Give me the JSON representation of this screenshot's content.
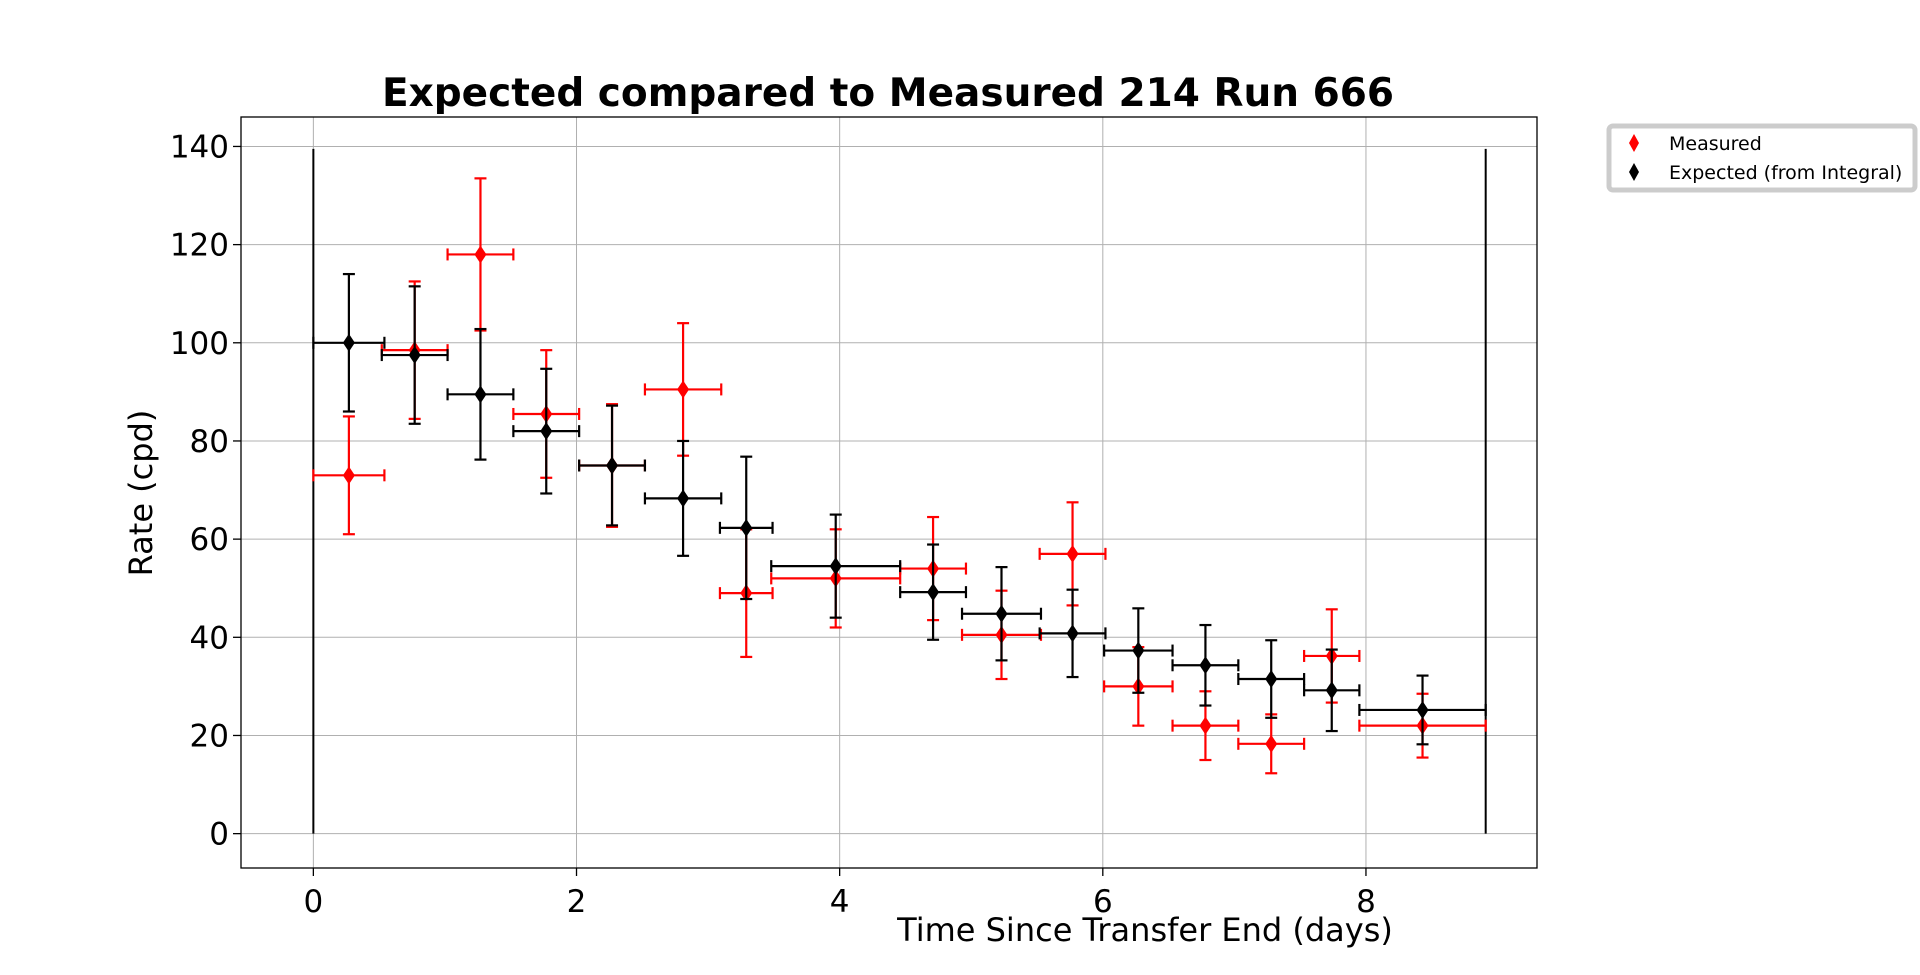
{
  "chart_data": {
    "type": "scatter",
    "title": "Expected compared to Measured 214 Run 666",
    "xlabel": "Time Since Transfer End (days)",
    "ylabel": "Rate (cpd)",
    "xlim": [
      -0.55,
      9.3
    ],
    "ylim": [
      -7,
      146
    ],
    "x_ticks": [
      0,
      2,
      4,
      6,
      8
    ],
    "y_ticks": [
      0,
      20,
      40,
      60,
      80,
      100,
      120,
      140
    ],
    "grid": true,
    "legend_position": "outside-top-right",
    "vertical_lines": [
      {
        "x": 0.0,
        "y0": 0,
        "y1": 139.5
      },
      {
        "x": 8.91,
        "y0": 0,
        "y1": 139.5
      }
    ],
    "series": [
      {
        "name": "Measured",
        "color": "#ff0000",
        "marker": "diamond",
        "points": [
          {
            "x": 0.27,
            "xerr": 0.27,
            "y": 73.0,
            "yerr": 12.0
          },
          {
            "x": 0.77,
            "xerr": 0.25,
            "y": 98.5,
            "yerr": 14.0
          },
          {
            "x": 1.27,
            "xerr": 0.25,
            "y": 118.0,
            "yerr": 15.5
          },
          {
            "x": 1.77,
            "xerr": 0.25,
            "y": 85.5,
            "yerr": 13.0
          },
          {
            "x": 2.27,
            "xerr": 0.25,
            "y": 75.0,
            "yerr": 12.5
          },
          {
            "x": 2.81,
            "xerr": 0.29,
            "y": 90.5,
            "yerr": 13.5
          },
          {
            "x": 3.29,
            "xerr": 0.2,
            "y": 49.0,
            "yerr": 13.0
          },
          {
            "x": 3.97,
            "xerr": 0.49,
            "y": 52.0,
            "yerr": 10.0
          },
          {
            "x": 4.71,
            "xerr": 0.25,
            "y": 54.0,
            "yerr": 10.5
          },
          {
            "x": 5.23,
            "xerr": 0.3,
            "y": 40.5,
            "yerr": 9.0
          },
          {
            "x": 5.77,
            "xerr": 0.25,
            "y": 57.0,
            "yerr": 10.5
          },
          {
            "x": 6.27,
            "xerr": 0.26,
            "y": 30.0,
            "yerr": 8.0
          },
          {
            "x": 6.78,
            "xerr": 0.25,
            "y": 22.0,
            "yerr": 7.0
          },
          {
            "x": 7.28,
            "xerr": 0.25,
            "y": 18.3,
            "yerr": 6.0
          },
          {
            "x": 7.74,
            "xerr": 0.21,
            "y": 36.2,
            "yerr": 9.5
          },
          {
            "x": 8.43,
            "xerr": 0.48,
            "y": 22.0,
            "yerr": 6.5
          }
        ]
      },
      {
        "name": "Expected (from Integral)",
        "color": "#000000",
        "marker": "diamond",
        "points": [
          {
            "x": 0.27,
            "xerr": 0.27,
            "y": 100.0,
            "yerr": 14.0
          },
          {
            "x": 0.77,
            "xerr": 0.25,
            "y": 97.5,
            "yerr": 14.0
          },
          {
            "x": 1.27,
            "xerr": 0.25,
            "y": 89.5,
            "yerr": 13.3
          },
          {
            "x": 1.77,
            "xerr": 0.25,
            "y": 82.0,
            "yerr": 12.7
          },
          {
            "x": 2.27,
            "xerr": 0.25,
            "y": 75.0,
            "yerr": 12.2
          },
          {
            "x": 2.81,
            "xerr": 0.29,
            "y": 68.3,
            "yerr": 11.7
          },
          {
            "x": 3.29,
            "xerr": 0.2,
            "y": 62.3,
            "yerr": 14.5
          },
          {
            "x": 3.97,
            "xerr": 0.49,
            "y": 54.5,
            "yerr": 10.5
          },
          {
            "x": 4.71,
            "xerr": 0.25,
            "y": 49.2,
            "yerr": 9.7
          },
          {
            "x": 5.23,
            "xerr": 0.3,
            "y": 44.8,
            "yerr": 9.5
          },
          {
            "x": 5.77,
            "xerr": 0.25,
            "y": 40.8,
            "yerr": 8.9
          },
          {
            "x": 6.27,
            "xerr": 0.26,
            "y": 37.3,
            "yerr": 8.6
          },
          {
            "x": 6.78,
            "xerr": 0.25,
            "y": 34.3,
            "yerr": 8.2
          },
          {
            "x": 7.28,
            "xerr": 0.25,
            "y": 31.5,
            "yerr": 7.9
          },
          {
            "x": 7.74,
            "xerr": 0.21,
            "y": 29.2,
            "yerr": 8.3
          },
          {
            "x": 8.43,
            "xerr": 0.48,
            "y": 25.2,
            "yerr": 7.0
          }
        ]
      }
    ]
  }
}
